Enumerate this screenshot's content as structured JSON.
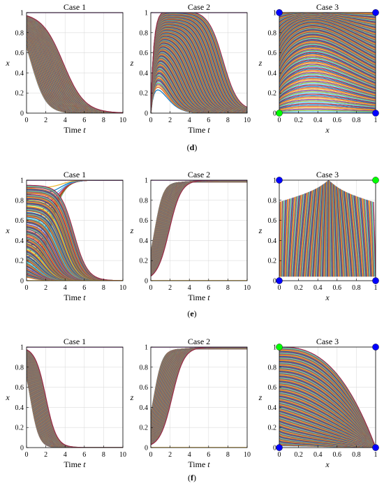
{
  "figure": {
    "row_labels": [
      {
        "open": "(",
        "letter": "d",
        "close": ")"
      },
      {
        "open": "(",
        "letter": "e",
        "close": ")"
      },
      {
        "open": "(",
        "letter": "f",
        "close": ")"
      }
    ]
  },
  "palette": [
    "#0072BD",
    "#D95319",
    "#EDB120",
    "#7E2F8E",
    "#77AC30",
    "#4DBEEE",
    "#A2142F"
  ],
  "marker_colors": {
    "blue": "#0000FF",
    "green": "#00FF00"
  },
  "chart_data": [
    {
      "panel": "d-1",
      "type": "line",
      "title": "Case 1",
      "xlabel_prefix": "Time ",
      "xlabel_var": "t",
      "ylabel": "x",
      "xlim": [
        0,
        10
      ],
      "ylim": [
        0,
        1
      ],
      "xticks": [
        0,
        2,
        4,
        6,
        8,
        10
      ],
      "yticks": [
        0,
        0.2,
        0.4,
        0.6,
        0.8,
        1
      ],
      "grid": true,
      "pattern": "decay",
      "params": {
        "t_min": 0.5,
        "t_max": 3.8,
        "k": 0.9
      },
      "boundary_lines": [
        1
      ],
      "markers": []
    },
    {
      "panel": "d-2",
      "type": "line",
      "title": "Case 2",
      "xlabel_prefix": "Time ",
      "xlabel_var": "t",
      "ylabel": "z",
      "xlim": [
        0,
        10
      ],
      "ylim": [
        0,
        1
      ],
      "xticks": [
        0,
        2,
        4,
        6,
        8,
        10
      ],
      "yticks": [
        0,
        0.2,
        0.4,
        0.6,
        0.8,
        1
      ],
      "grid": true,
      "pattern": "rise-fall",
      "params": {
        "rise": 0.6,
        "t_min": 1.5,
        "t_max": 7.5
      },
      "boundary_lines": [
        1
      ],
      "markers": []
    },
    {
      "panel": "d-3",
      "type": "line",
      "title": "Case 3",
      "xlabel": "x",
      "ylabel": "z",
      "xlim": [
        0,
        1
      ],
      "ylim": [
        0,
        1
      ],
      "xticks": [
        0,
        0.2,
        0.4,
        0.6,
        0.8,
        1
      ],
      "yticks": [
        0,
        0.2,
        0.4,
        0.6,
        0.8,
        1
      ],
      "grid": true,
      "pattern": "phase-arc",
      "params": {
        "peak": 0.3
      },
      "boundary_lines": [],
      "markers": [
        {
          "x": 0,
          "y": 1,
          "color": "blue"
        },
        {
          "x": 1,
          "y": 1,
          "color": "blue"
        },
        {
          "x": 0,
          "y": 0,
          "color": "green"
        },
        {
          "x": 1,
          "y": 0,
          "color": "blue"
        }
      ]
    },
    {
      "panel": "e-1",
      "type": "line",
      "title": "Case 1",
      "xlabel_prefix": "Time ",
      "xlabel_var": "t",
      "ylabel": "x",
      "xlim": [
        0,
        10
      ],
      "ylim": [
        0,
        1
      ],
      "xticks": [
        0,
        2,
        4,
        6,
        8,
        10
      ],
      "yticks": [
        0,
        0.2,
        0.4,
        0.6,
        0.8,
        1
      ],
      "grid": true,
      "pattern": "split",
      "params": {
        "t_min": 0.3,
        "t_max": 3.5,
        "k": 1.4
      },
      "boundary_lines": [
        1,
        0
      ],
      "markers": []
    },
    {
      "panel": "e-2",
      "type": "line",
      "title": "Case 2",
      "xlabel_prefix": "Time ",
      "xlabel_var": "t",
      "ylabel": "z",
      "xlim": [
        0,
        10
      ],
      "ylim": [
        0,
        1
      ],
      "xticks": [
        0,
        2,
        4,
        6,
        8,
        10
      ],
      "yticks": [
        0,
        0.2,
        0.4,
        0.6,
        0.8,
        1
      ],
      "grid": true,
      "pattern": "rise",
      "params": {
        "t_min": 0.4,
        "t_max": 1.9,
        "k": 1.6
      },
      "boundary_lines": [
        1,
        0
      ],
      "markers": []
    },
    {
      "panel": "e-3",
      "type": "line",
      "title": "Case 3",
      "xlabel": "x",
      "ylabel": "z",
      "xlim": [
        0,
        1
      ],
      "ylim": [
        0,
        1
      ],
      "xticks": [
        0,
        0.2,
        0.4,
        0.6,
        0.8,
        1
      ],
      "yticks": [
        0,
        0.2,
        0.4,
        0.6,
        0.8,
        1
      ],
      "grid": true,
      "pattern": "phase-up",
      "params": {},
      "boundary_lines": [],
      "markers": [
        {
          "x": 0,
          "y": 1,
          "color": "blue"
        },
        {
          "x": 1,
          "y": 1,
          "color": "green"
        },
        {
          "x": 0,
          "y": 0,
          "color": "blue"
        },
        {
          "x": 1,
          "y": 0,
          "color": "blue"
        }
      ]
    },
    {
      "panel": "f-1",
      "type": "line",
      "title": "Case 1",
      "xlabel_prefix": "Time ",
      "xlabel_var": "t",
      "ylabel": "x",
      "xlim": [
        0,
        10
      ],
      "ylim": [
        0,
        1
      ],
      "xticks": [
        0,
        2,
        4,
        6,
        8,
        10
      ],
      "yticks": [
        0,
        0.2,
        0.4,
        0.6,
        0.8,
        1
      ],
      "grid": true,
      "pattern": "decay",
      "params": {
        "t_min": 0.4,
        "t_max": 2.0,
        "k": 1.8
      },
      "boundary_lines": [
        1
      ],
      "markers": []
    },
    {
      "panel": "f-2",
      "type": "line",
      "title": "Case 2",
      "xlabel_prefix": "Time ",
      "xlabel_var": "t",
      "ylabel": "z",
      "xlim": [
        0,
        10
      ],
      "ylim": [
        0,
        1
      ],
      "xticks": [
        0,
        2,
        4,
        6,
        8,
        10
      ],
      "yticks": [
        0,
        0.2,
        0.4,
        0.6,
        0.8,
        1
      ],
      "grid": true,
      "pattern": "rise",
      "params": {
        "t_min": 0.3,
        "t_max": 2.2,
        "k": 1.6
      },
      "boundary_lines": [
        1,
        0
      ],
      "markers": []
    },
    {
      "panel": "f-3",
      "type": "line",
      "title": "Case 3",
      "xlabel": "x",
      "ylabel": "z",
      "xlim": [
        0,
        1
      ],
      "ylim": [
        0,
        1
      ],
      "xticks": [
        0,
        0.2,
        0.4,
        0.6,
        0.8,
        1
      ],
      "yticks": [
        0,
        0.2,
        0.4,
        0.6,
        0.8,
        1
      ],
      "grid": true,
      "pattern": "phase-diag",
      "params": {},
      "boundary_lines": [],
      "markers": [
        {
          "x": 0,
          "y": 1,
          "color": "green"
        },
        {
          "x": 1,
          "y": 1,
          "color": "blue"
        },
        {
          "x": 0,
          "y": 0,
          "color": "blue"
        },
        {
          "x": 1,
          "y": 0,
          "color": "blue"
        }
      ]
    }
  ]
}
